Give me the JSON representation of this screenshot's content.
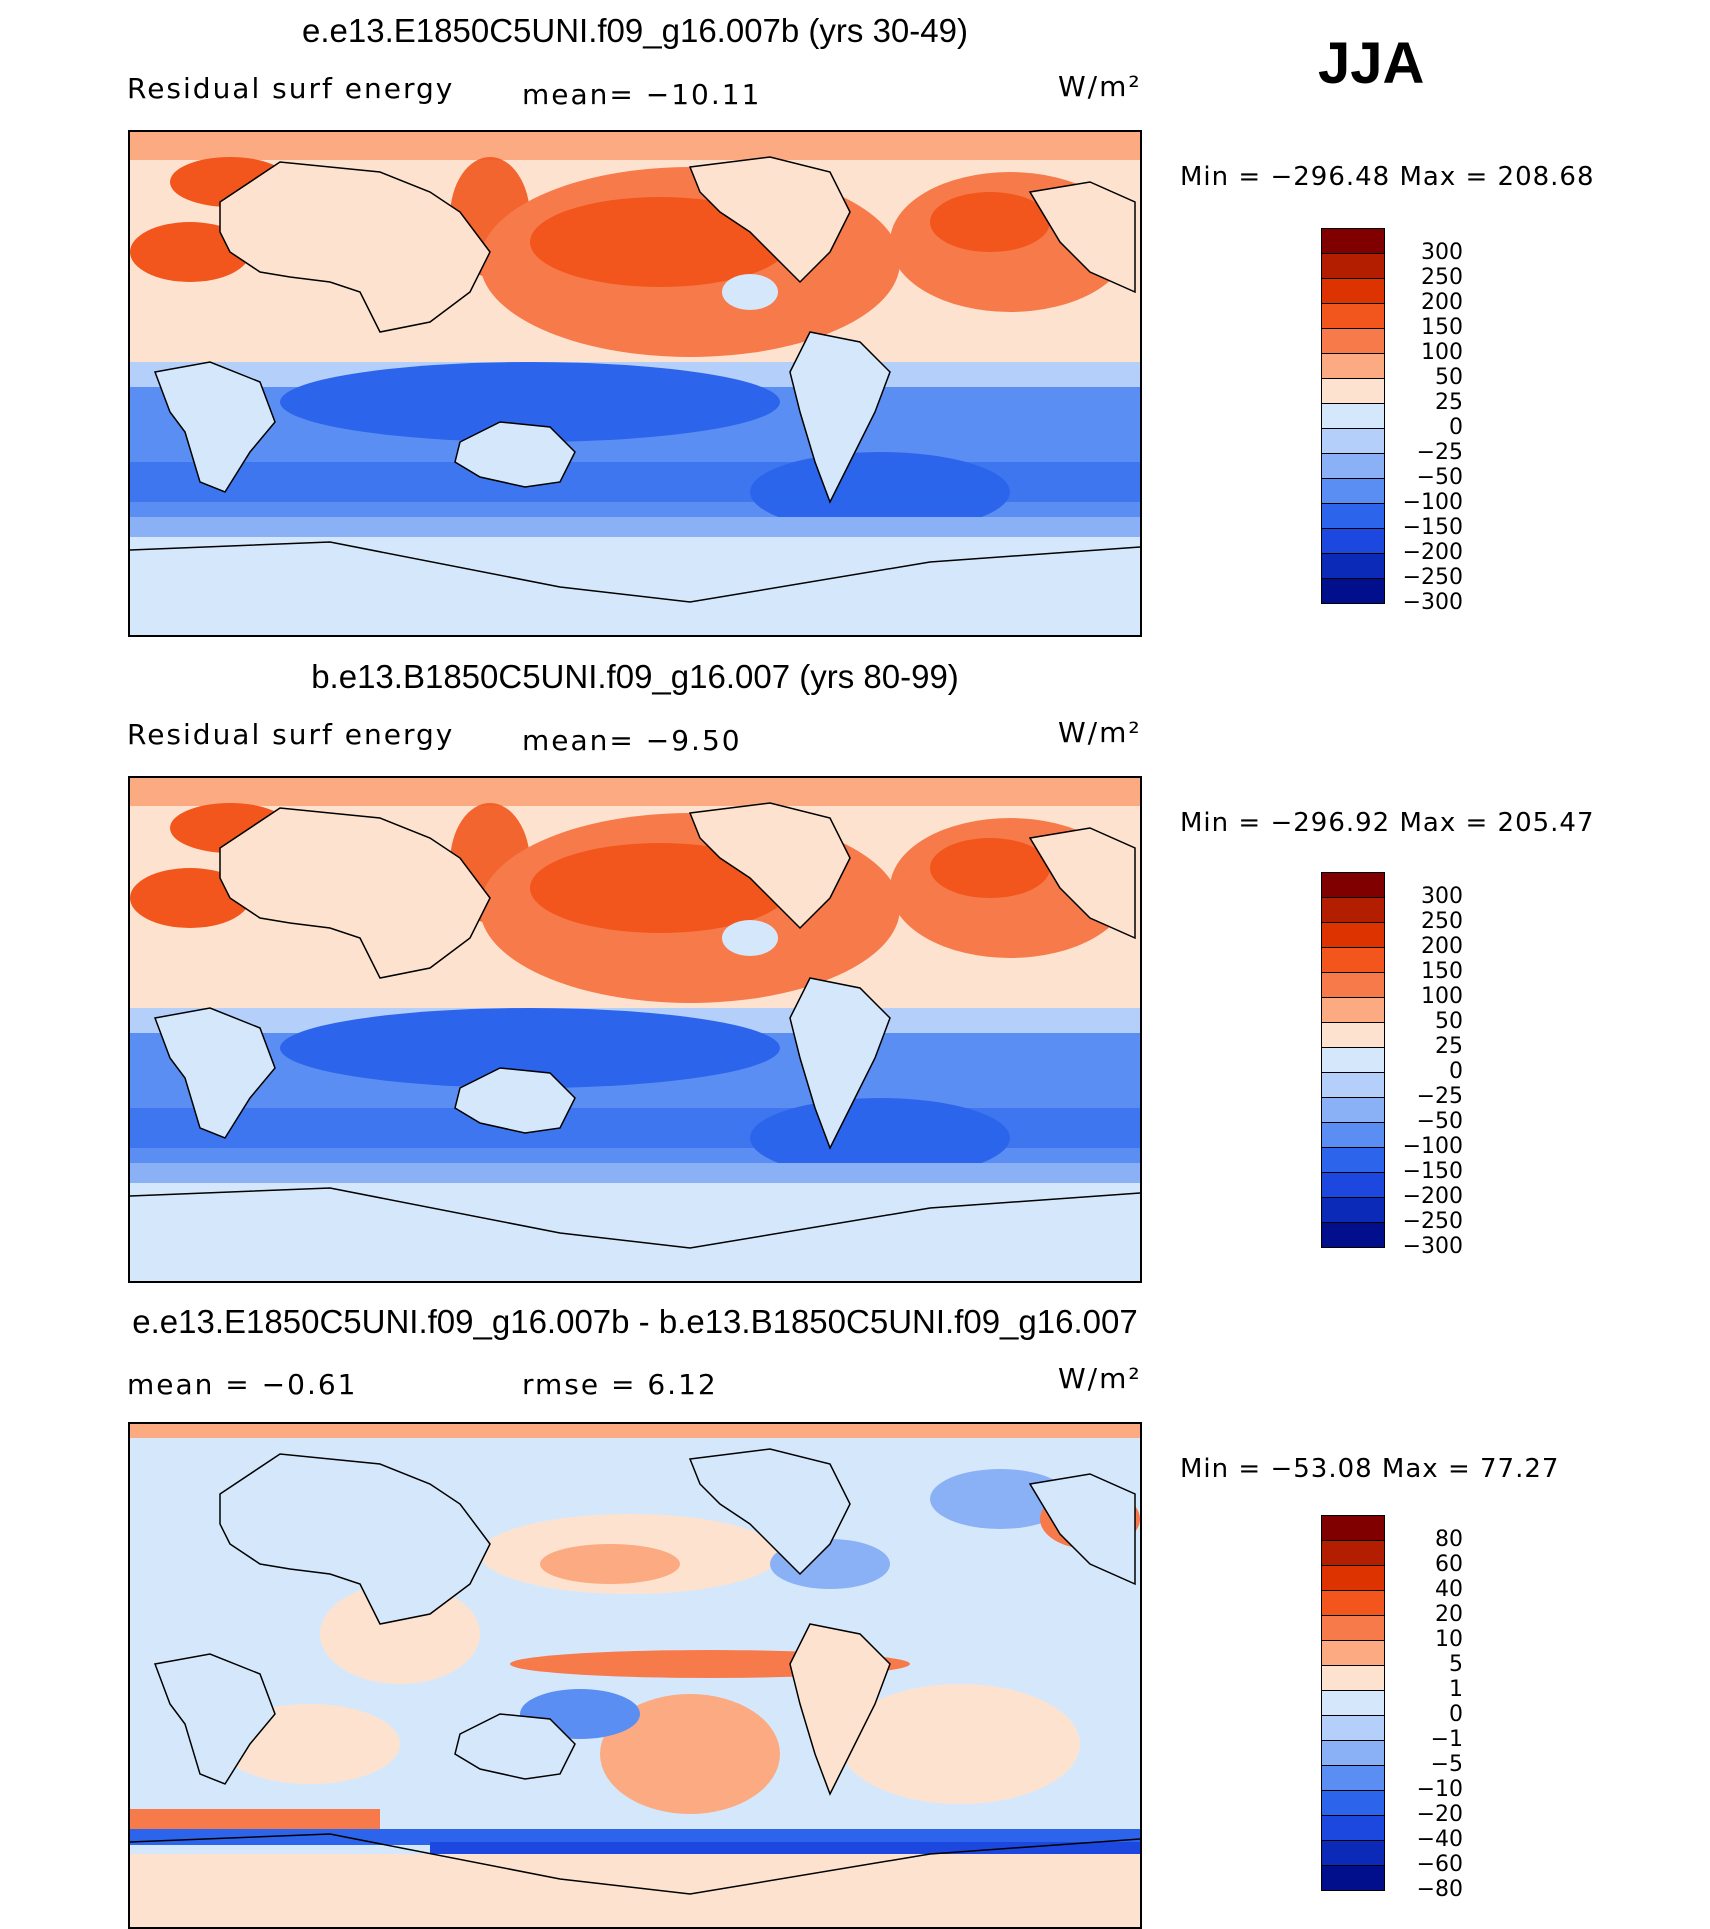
{
  "season": "JJA",
  "panels": [
    {
      "title": "e.e13.E1850C5UNI.f09_g16.007b (yrs 30-49)",
      "left_label": "Residual surf energy",
      "mid_label": "mean=  −10.11",
      "units": "W/m²",
      "minmax": "Min  =  −296.48  Max  =  208.68",
      "colorbar": {
        "colors": [
          "#800000",
          "#b31e00",
          "#dd3300",
          "#f2561c",
          "#f77a4a",
          "#fbaa82",
          "#fde3cf",
          "#d5e8fb",
          "#b4cffa",
          "#8ab1f6",
          "#5b8ef2",
          "#2c65ec",
          "#1d48e0",
          "#0c2ab8",
          "#020f8c"
        ],
        "labels": [
          "300",
          "250",
          "200",
          "150",
          "100",
          "50",
          "25",
          "0",
          "−25",
          "−50",
          "−100",
          "−150",
          "−200",
          "−250",
          "−300"
        ]
      }
    },
    {
      "title": "b.e13.B1850C5UNI.f09_g16.007 (yrs 80-99)",
      "left_label": "Residual surf energy",
      "mid_label": "mean=   −9.50",
      "units": "W/m²",
      "minmax": "Min  =  −296.92  Max  =  205.47",
      "colorbar": {
        "colors": [
          "#800000",
          "#b31e00",
          "#dd3300",
          "#f2561c",
          "#f77a4a",
          "#fbaa82",
          "#fde3cf",
          "#d5e8fb",
          "#b4cffa",
          "#8ab1f6",
          "#5b8ef2",
          "#2c65ec",
          "#1d48e0",
          "#0c2ab8",
          "#020f8c"
        ],
        "labels": [
          "300",
          "250",
          "200",
          "150",
          "100",
          "50",
          "25",
          "0",
          "−25",
          "−50",
          "−100",
          "−150",
          "−200",
          "−250",
          "−300"
        ]
      }
    },
    {
      "title": "e.e13.E1850C5UNI.f09_g16.007b - b.e13.B1850C5UNI.f09_g16.007",
      "left_label": "mean  =    −0.61",
      "mid_label": "rmse  =      6.12",
      "units": "W/m²",
      "minmax": "Min  =  −53.08  Max  =    77.27",
      "colorbar": {
        "colors": [
          "#800000",
          "#b31e00",
          "#dd3300",
          "#f2561c",
          "#f77a4a",
          "#fbaa82",
          "#fde3cf",
          "#d5e8fb",
          "#b4cffa",
          "#8ab1f6",
          "#5b8ef2",
          "#2c65ec",
          "#1d48e0",
          "#0c2ab8",
          "#020f8c"
        ],
        "labels": [
          "80",
          "60",
          "40",
          "20",
          "10",
          "5",
          "1",
          "0",
          "−1",
          "−5",
          "−10",
          "−20",
          "−40",
          "−60",
          "−80"
        ]
      }
    }
  ],
  "chart_data": [
    {
      "type": "heatmap",
      "title": "e.e13.E1850C5UNI.f09_g16.007b (yrs 30-49)",
      "variable": "Residual surf energy",
      "units": "W/m2",
      "season": "JJA",
      "mean": -10.11,
      "min": -296.48,
      "max": 208.68,
      "levels": [
        -300,
        -250,
        -200,
        -150,
        -100,
        -50,
        -25,
        0,
        25,
        50,
        100,
        150,
        200,
        250,
        300
      ]
    },
    {
      "type": "heatmap",
      "title": "b.e13.B1850C5UNI.f09_g16.007 (yrs 80-99)",
      "variable": "Residual surf energy",
      "units": "W/m2",
      "season": "JJA",
      "mean": -9.5,
      "min": -296.92,
      "max": 205.47,
      "levels": [
        -300,
        -250,
        -200,
        -150,
        -100,
        -50,
        -25,
        0,
        25,
        50,
        100,
        150,
        200,
        250,
        300
      ]
    },
    {
      "type": "heatmap",
      "title": "e.e13.E1850C5UNI.f09_g16.007b - b.e13.B1850C5UNI.f09_g16.007",
      "units": "W/m2",
      "season": "JJA",
      "mean": -0.61,
      "rmse": 6.12,
      "min": -53.08,
      "max": 77.27,
      "levels": [
        -80,
        -60,
        -40,
        -20,
        -10,
        -5,
        -1,
        0,
        1,
        5,
        10,
        20,
        40,
        60,
        80
      ]
    }
  ]
}
